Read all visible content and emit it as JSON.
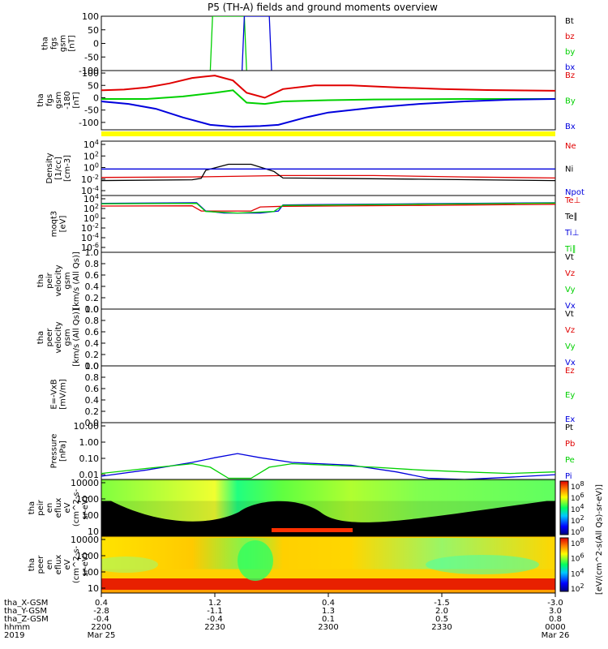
{
  "title": "P5 (TH-A) fields and ground moments overview",
  "colors": {
    "black": "#000000",
    "red": "#e00000",
    "green": "#00d000",
    "blue": "#0000dd",
    "yellow": "#ffff00"
  },
  "x_axis": {
    "row_labels": [
      "tha_X-GSM",
      "tha_Y-GSM",
      "tha_Z-GSM",
      "hhmm",
      "2019"
    ],
    "ticks": [
      {
        "values": [
          "0.4",
          "-2.8",
          "-0.4",
          "2200",
          "Mar 25"
        ]
      },
      {
        "values": [
          "1.2",
          "-1.1",
          "-0.4",
          "2230",
          ""
        ]
      },
      {
        "values": [
          "0.4",
          "1.3",
          "0.1",
          "2300",
          ""
        ]
      },
      {
        "values": [
          "-1.5",
          "2.0",
          "0.5",
          "2330",
          ""
        ]
      },
      {
        "values": [
          "-3.0",
          "3.0",
          "0.8",
          "0000",
          "Mar 26"
        ]
      }
    ]
  },
  "colorbar_label": "[eV/(cm^2-s(All Qs)-sr-eV)]",
  "chart_data": [
    {
      "type": "line",
      "ylabel": [
        "tha",
        "fgs",
        "gsm",
        "[nT]"
      ],
      "ylim": [
        -100,
        100
      ],
      "yticks": [
        "100",
        "50",
        "0",
        "-50",
        "-100"
      ],
      "legend": [
        "Bt",
        "bz",
        "by",
        "bx"
      ],
      "series": [
        {
          "name": "bz",
          "color": "red",
          "points": []
        },
        {
          "name": "by",
          "color": "green",
          "points": [
            [
              0.24,
              -100
            ],
            [
              0.245,
              100
            ],
            [
              0.315,
              100
            ],
            [
              0.32,
              -100
            ]
          ]
        },
        {
          "name": "bx",
          "color": "blue",
          "points": [
            [
              0.31,
              -100
            ],
            [
              0.315,
              100
            ],
            [
              0.37,
              100
            ],
            [
              0.375,
              -100
            ]
          ]
        }
      ]
    },
    {
      "type": "line",
      "ylabel": [
        "tha",
        "fgs",
        "gsm",
        "-180",
        "[nT]"
      ],
      "ylim": [
        -130,
        110
      ],
      "yticks": [
        "100",
        "50",
        "0",
        "-50",
        "-100"
      ],
      "legend": [
        "Bz",
        "By",
        "Bx"
      ],
      "series": [
        {
          "name": "Bz",
          "color": "red",
          "points": [
            [
              0,
              30
            ],
            [
              0.05,
              33
            ],
            [
              0.1,
              42
            ],
            [
              0.15,
              58
            ],
            [
              0.2,
              80
            ],
            [
              0.25,
              90
            ],
            [
              0.29,
              70
            ],
            [
              0.32,
              20
            ],
            [
              0.36,
              0
            ],
            [
              0.4,
              35
            ],
            [
              0.47,
              50
            ],
            [
              0.55,
              50
            ],
            [
              0.65,
              42
            ],
            [
              0.75,
              35
            ],
            [
              0.85,
              31
            ],
            [
              1,
              28
            ]
          ]
        },
        {
          "name": "By",
          "color": "green",
          "points": [
            [
              0,
              -5
            ],
            [
              0.1,
              -5
            ],
            [
              0.18,
              5
            ],
            [
              0.25,
              20
            ],
            [
              0.29,
              30
            ],
            [
              0.32,
              -20
            ],
            [
              0.36,
              -25
            ],
            [
              0.4,
              -15
            ],
            [
              0.5,
              -10
            ],
            [
              0.6,
              -7
            ],
            [
              0.8,
              -5
            ],
            [
              1,
              -5
            ]
          ]
        },
        {
          "name": "Bx",
          "color": "blue",
          "points": [
            [
              0,
              -15
            ],
            [
              0.06,
              -25
            ],
            [
              0.12,
              -45
            ],
            [
              0.18,
              -80
            ],
            [
              0.24,
              -110
            ],
            [
              0.29,
              -118
            ],
            [
              0.35,
              -115
            ],
            [
              0.39,
              -110
            ],
            [
              0.45,
              -80
            ],
            [
              0.5,
              -60
            ],
            [
              0.6,
              -40
            ],
            [
              0.7,
              -25
            ],
            [
              0.8,
              -15
            ],
            [
              0.9,
              -8
            ],
            [
              1,
              -5
            ]
          ]
        }
      ]
    },
    {
      "type": "line",
      "ylabel": [
        "Density",
        "[1/cc]",
        "[cm-3]"
      ],
      "scale": "log",
      "ylim": [
        0.0001,
        100000
      ],
      "yticks": [
        "10^4",
        "10^2",
        "10^0",
        "10^-2",
        "10^-4"
      ],
      "legend": [
        "Ne",
        "Ni",
        "Npot"
      ],
      "series": [
        {
          "name": "Ne",
          "color": "red",
          "points": [
            [
              0,
              0.1
            ],
            [
              0.2,
              0.12
            ],
            [
              0.4,
              0.2
            ],
            [
              0.6,
              0.2
            ],
            [
              0.8,
              0.12
            ],
            [
              1,
              0.08
            ]
          ]
        },
        {
          "name": "Ni",
          "color": "black",
          "points": [
            [
              0,
              0.03
            ],
            [
              0.2,
              0.04
            ],
            [
              0.22,
              0.07
            ],
            [
              0.23,
              1.5
            ],
            [
              0.28,
              15
            ],
            [
              0.33,
              15
            ],
            [
              0.38,
              1
            ],
            [
              0.4,
              0.08
            ],
            [
              0.5,
              0.07
            ],
            [
              0.7,
              0.05
            ],
            [
              1,
              0.03
            ]
          ]
        },
        {
          "name": "Npot",
          "color": "blue",
          "points": [
            [
              0,
              2.5
            ],
            [
              1,
              2.5
            ]
          ]
        }
      ]
    },
    {
      "type": "line",
      "ylabel": [
        "moqt3",
        "[eV]"
      ],
      "scale": "log",
      "ylim": [
        1e-06,
        100000
      ],
      "yticks": [
        "10^4",
        "10^2",
        "10^0",
        "10^-2",
        "10^-4",
        "10^-6"
      ],
      "legend": [
        "Te⊥",
        "Te∥",
        "Ti⊥",
        "Ti∥"
      ],
      "series": [
        {
          "name": "Te⊥",
          "color": "red",
          "points": [
            [
              0,
              900
            ],
            [
              0.2,
              1000
            ],
            [
              0.22,
              100
            ],
            [
              0.33,
              100
            ],
            [
              0.35,
              600
            ],
            [
              0.4,
              800
            ],
            [
              0.7,
              1200
            ],
            [
              1,
              2000
            ]
          ]
        },
        {
          "name": "Ti⊥",
          "color": "blue",
          "points": [
            [
              0,
              3000
            ],
            [
              0.21,
              4000
            ],
            [
              0.23,
              100
            ],
            [
              0.27,
              40
            ],
            [
              0.35,
              40
            ],
            [
              0.39,
              100
            ],
            [
              0.4,
              1500
            ],
            [
              0.7,
              2500
            ],
            [
              1,
              4000
            ]
          ]
        },
        {
          "name": "Ti∥",
          "color": "green",
          "points": [
            [
              0,
              2500
            ],
            [
              0.21,
              3000
            ],
            [
              0.23,
              80
            ],
            [
              0.3,
              40
            ],
            [
              0.38,
              80
            ],
            [
              0.4,
              1200
            ],
            [
              1,
              3500
            ]
          ]
        }
      ]
    },
    {
      "type": "line",
      "ylabel": [
        "tha",
        "peir",
        "velocity",
        "gsm",
        "[km/s (All Qs)]"
      ],
      "ylim": [
        0,
        1
      ],
      "yticks": [
        "1.0",
        "0.8",
        "0.6",
        "0.4",
        "0.2",
        "0.0"
      ],
      "legend": [
        "Vt",
        "Vz",
        "Vy",
        "Vx"
      ],
      "series": []
    },
    {
      "type": "line",
      "ylabel": [
        "tha",
        "peer",
        "velocity",
        "gsm",
        "[km/s (All Qs)]"
      ],
      "ylim": [
        0,
        1
      ],
      "yticks": [
        "1.0",
        "0.8",
        "0.6",
        "0.4",
        "0.2",
        "0.0"
      ],
      "legend": [
        "Vt",
        "Vz",
        "Vy",
        "Vx"
      ],
      "series": []
    },
    {
      "type": "line",
      "ylabel": [
        "E=-VxB",
        "[mV/m]"
      ],
      "ylim": [
        0,
        1
      ],
      "yticks": [
        "1.0",
        "0.8",
        "0.6",
        "0.4",
        "0.2",
        "0.0"
      ],
      "legend": [
        "Ez",
        "Ey",
        "Ex"
      ],
      "series": []
    },
    {
      "type": "line",
      "ylabel": [
        "Pressure",
        "[nPa]"
      ],
      "scale": "log",
      "ylim": [
        0.005,
        20
      ],
      "yticks": [
        "10.00",
        "1.00",
        "0.10",
        "0.01"
      ],
      "legend": [
        "Pt",
        "Pb",
        "Pe",
        "Pi"
      ],
      "series": [
        {
          "name": "Pi",
          "color": "blue",
          "points": [
            [
              0,
              0.008
            ],
            [
              0.1,
              0.02
            ],
            [
              0.2,
              0.06
            ],
            [
              0.25,
              0.12
            ],
            [
              0.3,
              0.22
            ],
            [
              0.35,
              0.12
            ],
            [
              0.42,
              0.06
            ],
            [
              0.55,
              0.04
            ],
            [
              0.65,
              0.015
            ],
            [
              0.72,
              0.006
            ],
            [
              0.8,
              0.005
            ],
            [
              0.9,
              0.007
            ],
            [
              1,
              0.01
            ]
          ]
        },
        {
          "name": "Pe",
          "color": "green",
          "points": [
            [
              0,
              0.012
            ],
            [
              0.1,
              0.025
            ],
            [
              0.2,
              0.05
            ],
            [
              0.24,
              0.03
            ],
            [
              0.28,
              0.006
            ],
            [
              0.33,
              0.006
            ],
            [
              0.37,
              0.03
            ],
            [
              0.42,
              0.05
            ],
            [
              0.5,
              0.04
            ],
            [
              0.6,
              0.03
            ],
            [
              0.7,
              0.02
            ],
            [
              0.8,
              0.015
            ],
            [
              0.9,
              0.012
            ],
            [
              1,
              0.015
            ]
          ]
        }
      ]
    },
    {
      "type": "heatmap",
      "ylabel": [
        "tha",
        "peir",
        "en",
        "eflux",
        "eV",
        "(cm^2-s-",
        "sr-eV)"
      ],
      "scale": "log",
      "ylim": [
        5,
        30000
      ],
      "yticks": [
        "10000",
        "1000",
        "100",
        "10"
      ],
      "colorbar_ticks": [
        "10^8",
        "10^6",
        "10^4",
        "10^2",
        "10^0"
      ]
    },
    {
      "type": "heatmap",
      "ylabel": [
        "tha",
        "peer",
        "en",
        "eflux",
        "eV",
        "(cm^2-s-",
        "sr-eV)"
      ],
      "scale": "log",
      "ylim": [
        5,
        30000
      ],
      "yticks": [
        "10000",
        "1000",
        "100",
        "10"
      ],
      "colorbar_ticks": [
        "10^8",
        "10^6",
        "10^4",
        "10^2"
      ]
    }
  ]
}
